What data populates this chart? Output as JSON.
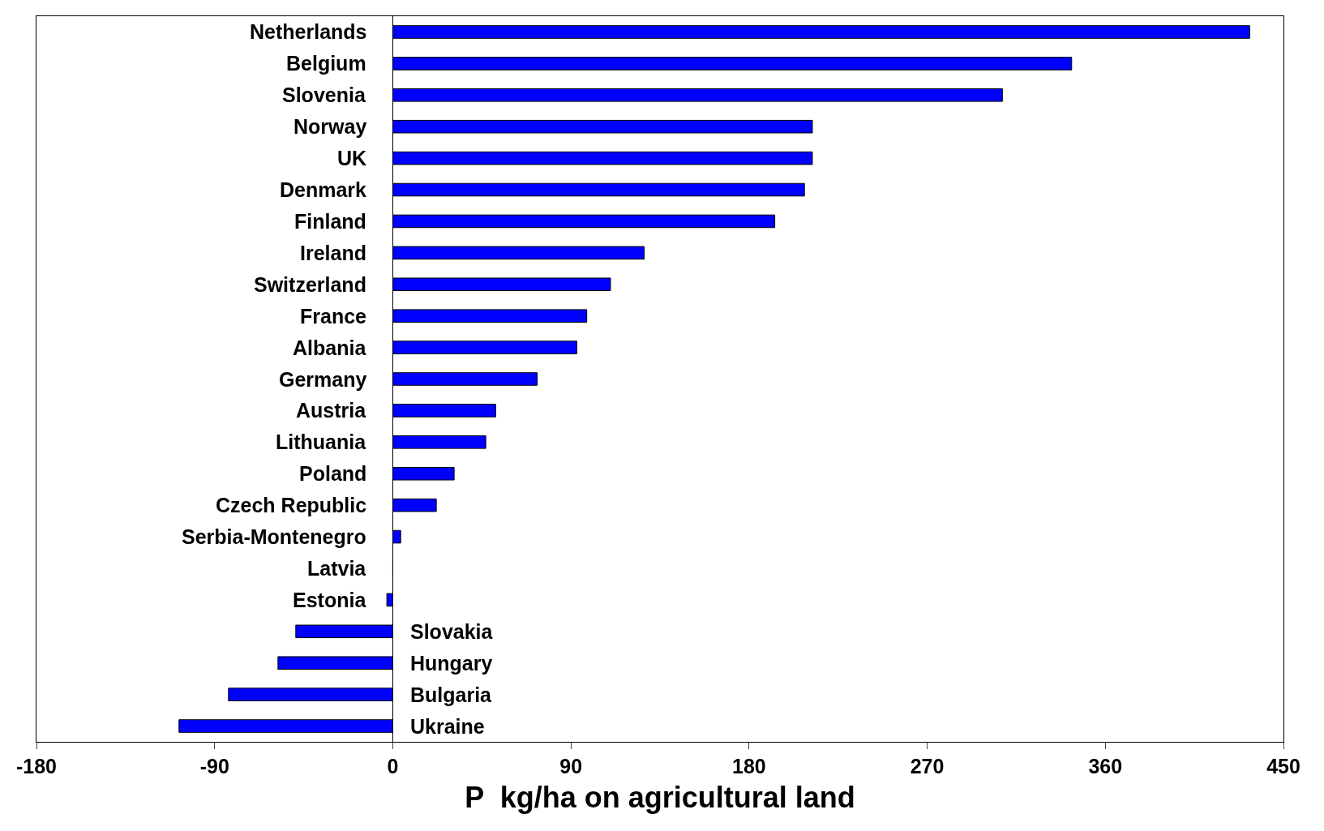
{
  "chart_data": {
    "type": "bar",
    "orientation": "horizontal",
    "xlabel": "P  kg/ha on agricultural land",
    "categories": [
      "Netherlands",
      "Belgium",
      "Slovenia",
      "Norway",
      "UK",
      "Denmark",
      "Finland",
      "Ireland",
      "Switzerland",
      "France",
      "Albania",
      "Germany",
      "Austria",
      "Lithuania",
      "Poland",
      "Czech Republic",
      "Serbia-Montenegro",
      "Latvia",
      "Estonia",
      "Slovakia",
      "Hungary",
      "Bulgaria",
      "Ukraine"
    ],
    "values": [
      433,
      343,
      308,
      212,
      212,
      208,
      193,
      127,
      110,
      98,
      93,
      73,
      52,
      47,
      31,
      22,
      4,
      0,
      -3,
      -49,
      -58,
      -83,
      -108
    ],
    "color": "#0000ff",
    "xlim": [
      -180,
      450
    ],
    "xticks": [
      -180,
      -90,
      0,
      90,
      180,
      270,
      360,
      450
    ],
    "grid": false
  }
}
